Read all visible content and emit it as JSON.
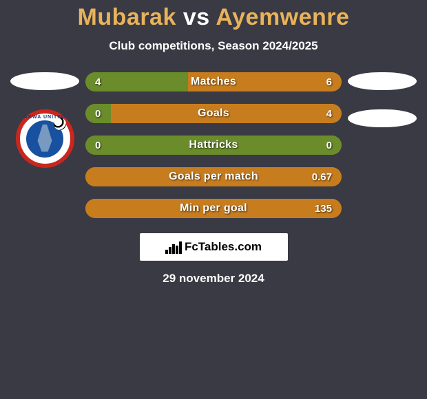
{
  "header": {
    "player1": "Mubarak",
    "vs": "vs",
    "player2": "Ayemwenre",
    "player1_color": "#e8b35a",
    "player2_color": "#e8b35a",
    "vs_color": "#ffffff"
  },
  "subtitle": "Club competitions, Season 2024/2025",
  "colors": {
    "background": "#3a3a44",
    "bar_green": "#6a8c2a",
    "bar_orange": "#c77d1e",
    "bar_track": "#6a8c2a",
    "text_white": "#ffffff"
  },
  "left_side": {
    "has_flag": true,
    "has_badge": true,
    "badge_text": "AKWA UNITED"
  },
  "right_side": {
    "has_flag1": true,
    "has_flag2": true
  },
  "stats": [
    {
      "label": "Matches",
      "left_value": "4",
      "right_value": "6",
      "left_pct": 40,
      "right_pct": 60,
      "left_color": "#6a8c2a",
      "right_color": "#c77d1e"
    },
    {
      "label": "Goals",
      "left_value": "0",
      "right_value": "4",
      "left_pct": 10,
      "right_pct": 90,
      "left_color": "#6a8c2a",
      "right_color": "#c77d1e"
    },
    {
      "label": "Hattricks",
      "left_value": "0",
      "right_value": "0",
      "left_pct": 100,
      "right_pct": 0,
      "left_color": "#6a8c2a",
      "right_color": "#c77d1e"
    },
    {
      "label": "Goals per match",
      "left_value": "",
      "right_value": "0.67",
      "left_pct": 0,
      "right_pct": 100,
      "left_color": "#6a8c2a",
      "right_color": "#c77d1e"
    },
    {
      "label": "Min per goal",
      "left_value": "",
      "right_value": "135",
      "left_pct": 0,
      "right_pct": 100,
      "left_color": "#6a8c2a",
      "right_color": "#c77d1e"
    }
  ],
  "footer": {
    "brand": "FcTables.com",
    "date": "29 november 2024"
  }
}
